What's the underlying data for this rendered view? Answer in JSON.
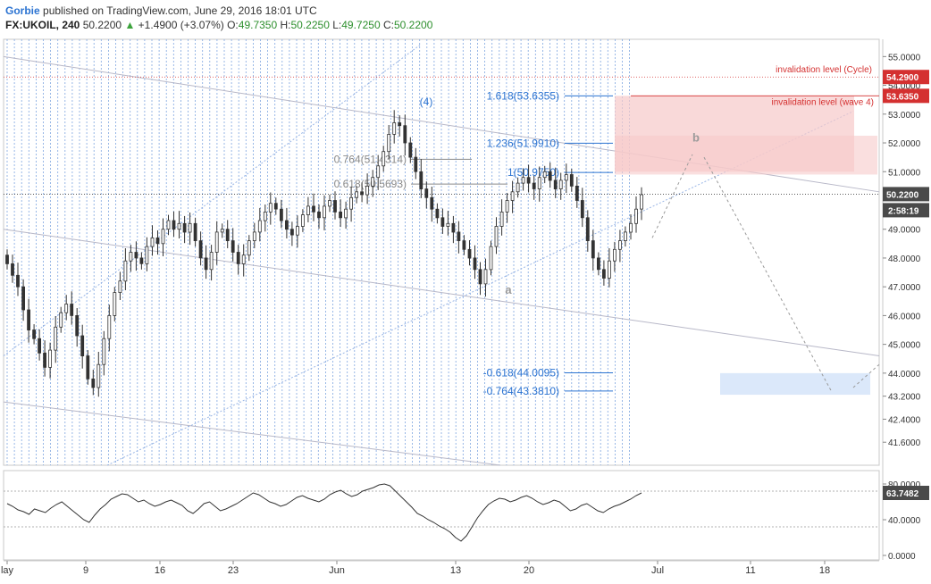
{
  "header": {
    "author": "Gorbie",
    "published": "published on TradingView.com, June 29, 2016 18:01 UTC",
    "symbol": "FX:UKOIL, 240",
    "last": "50.2200",
    "change_arrow": "▲",
    "change": "+1.4900 (+3.07%)",
    "o_label": "O:",
    "o_value": "49.7350",
    "h_label": "H:",
    "h_value": "50.2250",
    "l_label": "L:",
    "l_value": "49.7250",
    "c_label": "C:",
    "c_value": "50.2200"
  },
  "colors": {
    "candle": "#333333",
    "fib_blue": "#2b73d1",
    "fib_gray": "#8a8a8a",
    "invalidation_red": "#d43030",
    "price_label_bg": "#4a4a4a",
    "red_label_bg": "#d43030",
    "zone_pink": "#f7c9c9",
    "zone_blue": "#cfe0f8",
    "rsi_line": "#333333"
  },
  "chart_data": [
    {
      "type": "line",
      "title": "",
      "x_ticks": [
        "lay",
        "9",
        "16",
        "23",
        "Jun",
        "13",
        "20",
        "Jul",
        "11",
        "18"
      ],
      "y_ticks": [
        "55.0000",
        "54.0000",
        "53.0000",
        "52.0000",
        "51.0000",
        "49.0000",
        "48.0000",
        "47.0000",
        "46.0000",
        "45.0000",
        "44.0000",
        "43.2000",
        "42.4000",
        "41.6000"
      ],
      "ylim": [
        40.8,
        55.6
      ],
      "series": [
        {
          "values": [
            47.8,
            47.4,
            47.0,
            46.2,
            45.5,
            45.2,
            44.7,
            44.2,
            44.8,
            45.6,
            46.1,
            46.4,
            46.0,
            45.3,
            44.6,
            43.8,
            43.5,
            44.3,
            45.2,
            46.0,
            46.8,
            47.2,
            47.9,
            48.2,
            48.0,
            47.8,
            48.4,
            48.7,
            48.5,
            49.0,
            49.3,
            49.0,
            49.2,
            48.9,
            49.2,
            48.6,
            48.0,
            47.6,
            48.2,
            48.9,
            49.0,
            48.6,
            48.2,
            47.8,
            48.1,
            48.6,
            48.9,
            49.3,
            49.6,
            49.9,
            49.7,
            49.3,
            49.0,
            48.8,
            49.1,
            49.5,
            49.8,
            49.6,
            49.4,
            49.8,
            50.0,
            49.6,
            49.4,
            49.7,
            50.1,
            50.3,
            50.2,
            50.5,
            50.8,
            51.2,
            51.7,
            52.3,
            52.7,
            52.6,
            52.0,
            51.5,
            51.0,
            50.4,
            50.1,
            49.7,
            49.4,
            49.1,
            49.2,
            48.9,
            48.6,
            48.3,
            48.0,
            47.6,
            47.1,
            47.6,
            48.4,
            49.1,
            49.6,
            50.0,
            50.3,
            50.6,
            50.8,
            50.6,
            50.4,
            50.8,
            51.0,
            50.7,
            50.4,
            50.7,
            50.9,
            50.5,
            50.0,
            49.4,
            48.6,
            48.0,
            47.6,
            47.3,
            47.9,
            48.3,
            48.6,
            48.9,
            49.2,
            49.7,
            50.2
          ],
          "ohlc_note": "FX:UKOIL 4-hour candlesticks, values approximate closes"
        }
      ],
      "annotations": {
        "wave_4": "(4)",
        "wave_a": "a",
        "wave_b": "b",
        "fib_labels": [
          {
            "text": "1.618(53.6355)",
            "price": 53.6355
          },
          {
            "text": "1.236(51.9910)",
            "price": 51.991
          },
          {
            "text": "1(50.9750)",
            "price": 50.975
          },
          {
            "text": "0.764(51.4314)",
            "price": 51.4314
          },
          {
            "text": "0.618(50.5693)",
            "price": 50.5693
          },
          {
            "text": "-0.618(44.0095)",
            "price": 44.0095
          },
          {
            "text": "-0.764(43.3810)",
            "price": 43.381
          }
        ],
        "invalidation_cycle": {
          "text": "invalidation level (Cycle)",
          "price": 54.29
        },
        "invalidation_wave4": {
          "text": "invalidation level (wave 4)",
          "price": 53.635
        }
      },
      "price_labels": {
        "cycle_level": "54.2900",
        "wave4_level": "53.6350",
        "current_price": "50.2200",
        "countdown": "2:58:19"
      }
    },
    {
      "type": "line",
      "title": "",
      "y_ticks": [
        "80.0000",
        "40.0000",
        "0.0000"
      ],
      "ylim": [
        -5,
        95
      ],
      "bands": [
        72,
        32
      ],
      "series": [
        {
          "values": [
            58,
            55,
            51,
            49,
            46,
            52,
            50,
            48,
            53,
            57,
            60,
            55,
            50,
            45,
            40,
            37,
            45,
            52,
            57,
            63,
            66,
            69,
            68,
            64,
            60,
            62,
            58,
            55,
            57,
            60,
            62,
            59,
            56,
            50,
            47,
            52,
            58,
            60,
            55,
            50,
            52,
            55,
            58,
            62,
            66,
            70,
            68,
            64,
            60,
            58,
            55,
            57,
            61,
            65,
            67,
            64,
            62,
            60,
            63,
            68,
            71,
            73,
            69,
            66,
            68,
            72,
            74,
            76,
            79,
            80,
            78,
            72,
            66,
            60,
            54,
            47,
            44,
            40,
            37,
            33,
            30,
            26,
            20,
            16,
            22,
            32,
            42,
            50,
            57,
            61,
            64,
            63,
            60,
            62,
            65,
            67,
            64,
            60,
            57,
            59,
            62,
            60,
            55,
            50,
            52,
            56,
            58,
            54,
            50,
            48,
            52,
            55,
            57,
            60,
            63,
            67,
            70
          ],
          "current_label": "63.7482"
        }
      ]
    }
  ]
}
